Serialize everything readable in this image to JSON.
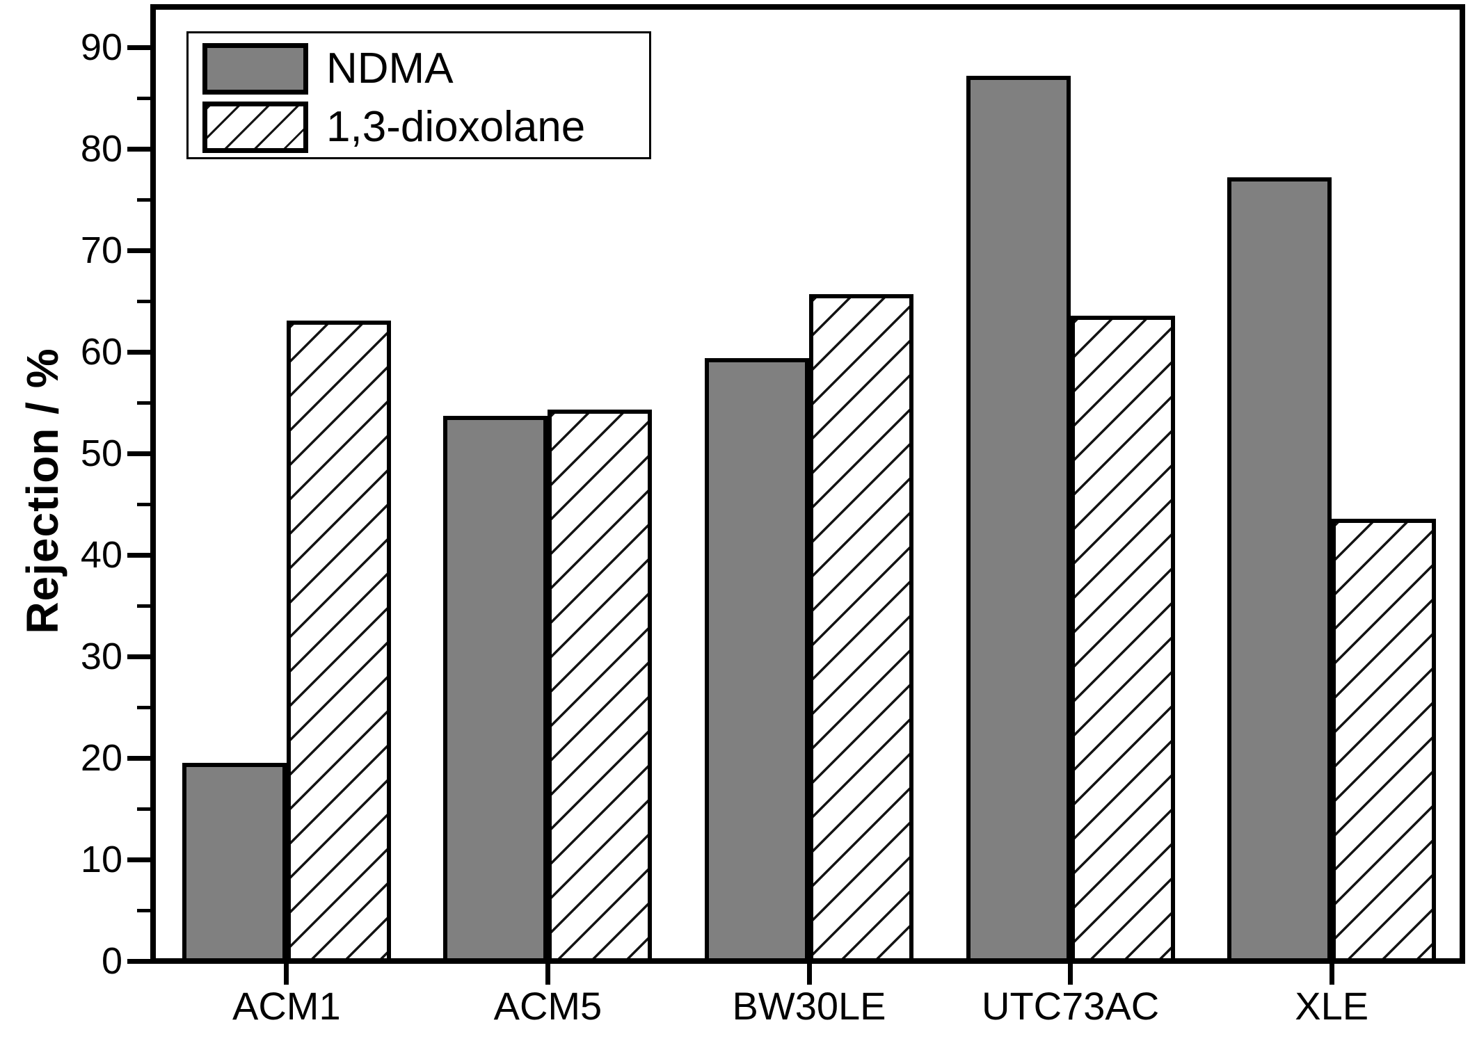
{
  "chart_data": {
    "type": "bar",
    "title": "",
    "xlabel": "",
    "ylabel": "Rejection / %",
    "ylim": [
      0,
      94
    ],
    "yticks_major": [
      0,
      10,
      20,
      30,
      40,
      50,
      60,
      70,
      80,
      90
    ],
    "yticks_minor": [
      5,
      15,
      25,
      35,
      45,
      55,
      65,
      75,
      85
    ],
    "grid": false,
    "legend_position": "top-left",
    "categories": [
      "ACM1",
      "ACM5",
      "BW30LE",
      "UTC73AC",
      "XLE"
    ],
    "series": [
      {
        "name": "NDMA",
        "pattern": "solid",
        "fill": "#808080",
        "values": [
          19.5,
          53.7,
          59.4,
          87.2,
          77.2
        ]
      },
      {
        "name": "1,3-dioxolane",
        "pattern": "hatch",
        "fill": "#ffffff",
        "values": [
          63.1,
          54.3,
          65.7,
          63.6,
          43.6
        ]
      }
    ],
    "bar_outline_color": "#000000"
  },
  "colors": {
    "background": "#ffffff",
    "axis": "#000000",
    "text": "#000000",
    "gray_fill": "#808080"
  }
}
